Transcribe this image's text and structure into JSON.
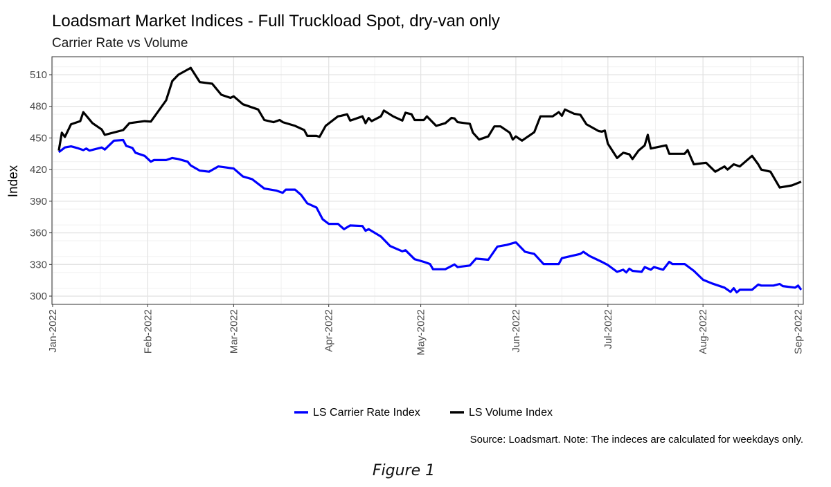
{
  "chart_data": {
    "type": "line",
    "title": "Loadsmart Market Indices - Full Truckload Spot, dry-van only",
    "subtitle": "Carrier Rate vs Volume",
    "xlabel": "",
    "ylabel": "Index",
    "ylim": [
      292,
      527
    ],
    "xlim": [
      "2022-01-01",
      "2022-09-03"
    ],
    "grid": true,
    "legend": "bottom",
    "y_ticks": [
      300,
      330,
      360,
      390,
      420,
      450,
      480,
      510
    ],
    "x_ticks": [
      {
        "date": "2022-01-01",
        "label": "Jan-2022"
      },
      {
        "date": "2022-02-01",
        "label": "Feb-2022"
      },
      {
        "date": "2022-03-01",
        "label": "Mar-2022"
      },
      {
        "date": "2022-04-01",
        "label": "Apr-2022"
      },
      {
        "date": "2022-05-01",
        "label": "May-2022"
      },
      {
        "date": "2022-06-01",
        "label": "Jun-2022"
      },
      {
        "date": "2022-07-01",
        "label": "Jul-2022"
      },
      {
        "date": "2022-08-01",
        "label": "Aug-2022"
      },
      {
        "date": "2022-09-01",
        "label": "Sep-2022"
      }
    ],
    "series": [
      {
        "name": "LS Carrier Rate Index",
        "color": "#0000ff",
        "points": [
          [
            "2022-01-03",
            436.5
          ],
          [
            "2022-01-05",
            441
          ],
          [
            "2022-01-07",
            442
          ],
          [
            "2022-01-09",
            440.5
          ],
          [
            "2022-01-11",
            438.5
          ],
          [
            "2022-01-12",
            440
          ],
          [
            "2022-01-13",
            438
          ],
          [
            "2022-01-17",
            441
          ],
          [
            "2022-01-18",
            439
          ],
          [
            "2022-01-21",
            447.5
          ],
          [
            "2022-01-24",
            448
          ],
          [
            "2022-01-25",
            442.5
          ],
          [
            "2022-01-27",
            440.5
          ],
          [
            "2022-01-28",
            436
          ],
          [
            "2022-01-31",
            433
          ],
          [
            "2022-02-02",
            427.5
          ],
          [
            "2022-02-03",
            429
          ],
          [
            "2022-02-07",
            429
          ],
          [
            "2022-02-09",
            431
          ],
          [
            "2022-02-11",
            430
          ],
          [
            "2022-02-14",
            427.5
          ],
          [
            "2022-02-15",
            424
          ],
          [
            "2022-02-18",
            419
          ],
          [
            "2022-02-21",
            418
          ],
          [
            "2022-02-24",
            423
          ],
          [
            "2022-03-01",
            421
          ],
          [
            "2022-03-04",
            413.5
          ],
          [
            "2022-03-07",
            411
          ],
          [
            "2022-03-11",
            402
          ],
          [
            "2022-03-15",
            400
          ],
          [
            "2022-03-17",
            398
          ],
          [
            "2022-03-18",
            401
          ],
          [
            "2022-03-21",
            401
          ],
          [
            "2022-03-23",
            396
          ],
          [
            "2022-03-25",
            388
          ],
          [
            "2022-03-28",
            384
          ],
          [
            "2022-03-30",
            373
          ],
          [
            "2022-04-01",
            368.5
          ],
          [
            "2022-04-04",
            368.5
          ],
          [
            "2022-04-06",
            363.5
          ],
          [
            "2022-04-08",
            367
          ],
          [
            "2022-04-12",
            366.5
          ],
          [
            "2022-04-13",
            362
          ],
          [
            "2022-04-14",
            363.5
          ],
          [
            "2022-04-18",
            356.5
          ],
          [
            "2022-04-21",
            347.5
          ],
          [
            "2022-04-25",
            342.5
          ],
          [
            "2022-04-26",
            343.5
          ],
          [
            "2022-04-29",
            335
          ],
          [
            "2022-05-02",
            332.5
          ],
          [
            "2022-05-04",
            330.5
          ],
          [
            "2022-05-05",
            325.5
          ],
          [
            "2022-05-09",
            325.5
          ],
          [
            "2022-05-12",
            330
          ],
          [
            "2022-05-13",
            327.5
          ],
          [
            "2022-05-17",
            329
          ],
          [
            "2022-05-19",
            335.5
          ],
          [
            "2022-05-23",
            334.5
          ],
          [
            "2022-05-26",
            347
          ],
          [
            "2022-05-29",
            348.5
          ],
          [
            "2022-06-01",
            351
          ],
          [
            "2022-06-04",
            342
          ],
          [
            "2022-06-07",
            340
          ],
          [
            "2022-06-10",
            330.5
          ],
          [
            "2022-06-15",
            330.5
          ],
          [
            "2022-06-16",
            336
          ],
          [
            "2022-06-22",
            340
          ],
          [
            "2022-06-23",
            342
          ],
          [
            "2022-06-25",
            338
          ],
          [
            "2022-06-29",
            332.5
          ],
          [
            "2022-07-01",
            329.5
          ],
          [
            "2022-07-04",
            323
          ],
          [
            "2022-07-06",
            325
          ],
          [
            "2022-07-07",
            322.5
          ],
          [
            "2022-07-08",
            326
          ],
          [
            "2022-07-09",
            324
          ],
          [
            "2022-07-12",
            323
          ],
          [
            "2022-07-13",
            327.5
          ],
          [
            "2022-07-15",
            325
          ],
          [
            "2022-07-16",
            327.5
          ],
          [
            "2022-07-19",
            325
          ],
          [
            "2022-07-21",
            332.5
          ],
          [
            "2022-07-22",
            330.5
          ],
          [
            "2022-07-26",
            330.5
          ],
          [
            "2022-07-29",
            324
          ],
          [
            "2022-08-01",
            315.5
          ],
          [
            "2022-08-04",
            312
          ],
          [
            "2022-08-08",
            308
          ],
          [
            "2022-08-10",
            304
          ],
          [
            "2022-08-11",
            307.5
          ],
          [
            "2022-08-12",
            303.5
          ],
          [
            "2022-08-13",
            306
          ],
          [
            "2022-08-17",
            306
          ],
          [
            "2022-08-19",
            311
          ],
          [
            "2022-08-20",
            310
          ],
          [
            "2022-08-24",
            310
          ],
          [
            "2022-08-26",
            311.5
          ],
          [
            "2022-08-27",
            309.5
          ],
          [
            "2022-08-31",
            308
          ],
          [
            "2022-09-01",
            310
          ],
          [
            "2022-09-02",
            306
          ]
        ]
      },
      {
        "name": "LS Volume Index",
        "color": "#000000",
        "points": [
          [
            "2022-01-03",
            438
          ],
          [
            "2022-01-04",
            455
          ],
          [
            "2022-01-05",
            451
          ],
          [
            "2022-01-07",
            463
          ],
          [
            "2022-01-10",
            466
          ],
          [
            "2022-01-11",
            474.5
          ],
          [
            "2022-01-12",
            471
          ],
          [
            "2022-01-14",
            464
          ],
          [
            "2022-01-17",
            458
          ],
          [
            "2022-01-18",
            453
          ],
          [
            "2022-01-24",
            457.5
          ],
          [
            "2022-01-26",
            464
          ],
          [
            "2022-01-31",
            466
          ],
          [
            "2022-02-02",
            465.5
          ],
          [
            "2022-02-07",
            485.7
          ],
          [
            "2022-02-09",
            504
          ],
          [
            "2022-02-11",
            510
          ],
          [
            "2022-02-15",
            516.5
          ],
          [
            "2022-02-18",
            503
          ],
          [
            "2022-02-22",
            501.5
          ],
          [
            "2022-02-25",
            491
          ],
          [
            "2022-02-28",
            488
          ],
          [
            "2022-03-01",
            489.5
          ],
          [
            "2022-03-04",
            482
          ],
          [
            "2022-03-09",
            477
          ],
          [
            "2022-03-11",
            467
          ],
          [
            "2022-03-14",
            465
          ],
          [
            "2022-03-16",
            467
          ],
          [
            "2022-03-17",
            465
          ],
          [
            "2022-03-21",
            461.5
          ],
          [
            "2022-03-24",
            457.5
          ],
          [
            "2022-03-25",
            452
          ],
          [
            "2022-03-28",
            452
          ],
          [
            "2022-03-29",
            451
          ],
          [
            "2022-03-31",
            461.5
          ],
          [
            "2022-04-04",
            470.5
          ],
          [
            "2022-04-05",
            471
          ],
          [
            "2022-04-07",
            472.5
          ],
          [
            "2022-04-08",
            466.5
          ],
          [
            "2022-04-12",
            470.5
          ],
          [
            "2022-04-13",
            464
          ],
          [
            "2022-04-14",
            469
          ],
          [
            "2022-04-15",
            466
          ],
          [
            "2022-04-18",
            470.5
          ],
          [
            "2022-04-19",
            476
          ],
          [
            "2022-04-22",
            470.5
          ],
          [
            "2022-04-25",
            466.5
          ],
          [
            "2022-04-26",
            474
          ],
          [
            "2022-04-28",
            472.5
          ],
          [
            "2022-04-29",
            467
          ],
          [
            "2022-05-02",
            467
          ],
          [
            "2022-05-03",
            470.5
          ],
          [
            "2022-05-06",
            461.5
          ],
          [
            "2022-05-09",
            464
          ],
          [
            "2022-05-11",
            469
          ],
          [
            "2022-05-12",
            468.5
          ],
          [
            "2022-05-13",
            465
          ],
          [
            "2022-05-17",
            463.5
          ],
          [
            "2022-05-18",
            455
          ],
          [
            "2022-05-20",
            448.5
          ],
          [
            "2022-05-23",
            451.5
          ],
          [
            "2022-05-25",
            461
          ],
          [
            "2022-05-27",
            461
          ],
          [
            "2022-05-30",
            455
          ],
          [
            "2022-05-31",
            448.5
          ],
          [
            "2022-06-01",
            451.5
          ],
          [
            "2022-06-03",
            447.5
          ],
          [
            "2022-06-07",
            455.5
          ],
          [
            "2022-06-09",
            470.5
          ],
          [
            "2022-06-13",
            470.5
          ],
          [
            "2022-06-15",
            474.5
          ],
          [
            "2022-06-16",
            471
          ],
          [
            "2022-06-17",
            477
          ],
          [
            "2022-06-20",
            473
          ],
          [
            "2022-06-22",
            472
          ],
          [
            "2022-06-24",
            463
          ],
          [
            "2022-06-28",
            456.5
          ],
          [
            "2022-06-29",
            456
          ],
          [
            "2022-06-30",
            457
          ],
          [
            "2022-07-01",
            444.5
          ],
          [
            "2022-07-04",
            431
          ],
          [
            "2022-07-06",
            436
          ],
          [
            "2022-07-08",
            434.5
          ],
          [
            "2022-07-09",
            430
          ],
          [
            "2022-07-11",
            438
          ],
          [
            "2022-07-13",
            443
          ],
          [
            "2022-07-14",
            453
          ],
          [
            "2022-07-15",
            440
          ],
          [
            "2022-07-20",
            443
          ],
          [
            "2022-07-21",
            435
          ],
          [
            "2022-07-26",
            435
          ],
          [
            "2022-07-27",
            438.5
          ],
          [
            "2022-07-29",
            425
          ],
          [
            "2022-08-02",
            426.5
          ],
          [
            "2022-08-05",
            418
          ],
          [
            "2022-08-08",
            423
          ],
          [
            "2022-08-09",
            420
          ],
          [
            "2022-08-11",
            425
          ],
          [
            "2022-08-13",
            423
          ],
          [
            "2022-08-17",
            433
          ],
          [
            "2022-08-19",
            425
          ],
          [
            "2022-08-20",
            420
          ],
          [
            "2022-08-23",
            418
          ],
          [
            "2022-08-26",
            403
          ],
          [
            "2022-08-30",
            405
          ],
          [
            "2022-09-02",
            408.5
          ]
        ]
      }
    ]
  },
  "caption": "Source: Loadsmart. Note: The indeces are calculated for weekdays only.",
  "figure_label": "Figure 1"
}
